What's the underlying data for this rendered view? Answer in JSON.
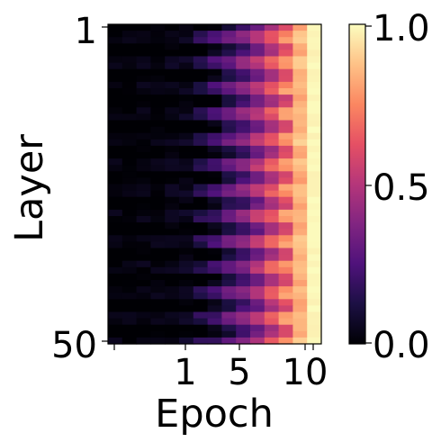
{
  "chart_data": {
    "type": "heatmap",
    "xlabel": "Epoch",
    "ylabel": "Layer",
    "x_tick_labels": [
      "1",
      "5",
      "10"
    ],
    "y_tick_labels": [
      "1",
      "50"
    ],
    "x_scale": "log",
    "colorbar": {
      "colormap": "magma",
      "range": [
        0.0,
        1.0
      ],
      "tick_labels": [
        "0.0",
        "0.5",
        "1.0"
      ],
      "ticks": [
        0.0,
        0.5,
        1.0
      ]
    },
    "n_rows": 50,
    "n_cols": 15,
    "column_mean_values": [
      0.0,
      0.0,
      0.01,
      0.01,
      0.02,
      0.03,
      0.05,
      0.12,
      0.22,
      0.3,
      0.42,
      0.55,
      0.68,
      0.85,
      0.97
    ],
    "row_variation": "layers alternate between slightly higher and lower values; middle and late epochs show banded stripes across layers"
  }
}
